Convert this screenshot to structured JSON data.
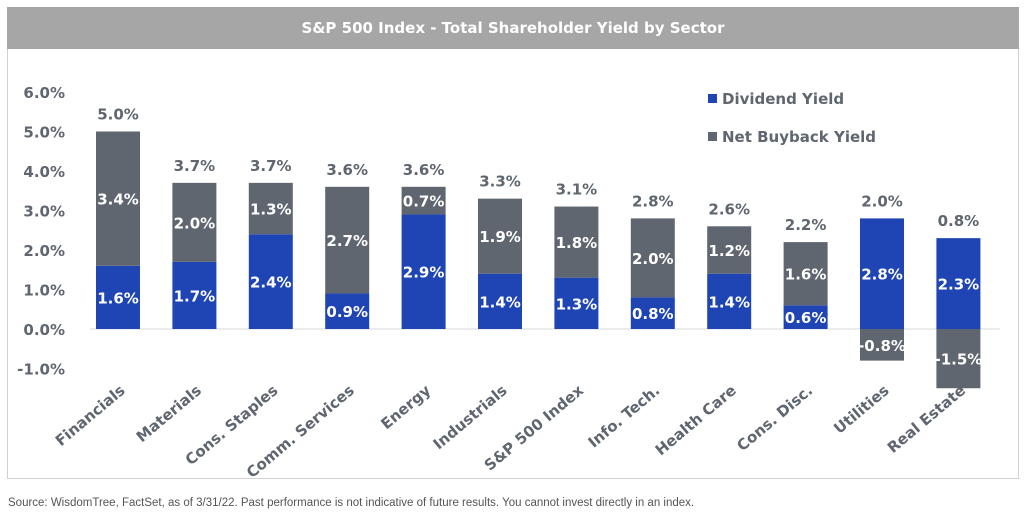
{
  "chart_data": {
    "type": "bar",
    "stacked": true,
    "title": "S&P 500 Index - Total Shareholder Yield by Sector",
    "categories": [
      "Financials",
      "Materials",
      "Cons. Staples",
      "Comm. Services",
      "Energy",
      "Industrials",
      "S&P 500 Index",
      "Info. Tech.",
      "Health Care",
      "Cons. Disc.",
      "Utilities",
      "Real Estate"
    ],
    "series": [
      {
        "name": "Dividend Yield",
        "color": "#1f45b5",
        "values": [
          1.6,
          1.7,
          2.4,
          0.9,
          2.9,
          1.4,
          1.3,
          0.8,
          1.4,
          0.6,
          2.8,
          2.3
        ],
        "labels": [
          "1.6%",
          "1.7%",
          "2.4%",
          "0.9%",
          "2.9%",
          "1.4%",
          "1.3%",
          "0.8%",
          "1.4%",
          "0.6%",
          "2.8%",
          "2.3%"
        ]
      },
      {
        "name": "Net Buyback Yield",
        "color": "#5f6670",
        "values": [
          3.4,
          2.0,
          1.3,
          2.7,
          0.7,
          1.9,
          1.8,
          2.0,
          1.2,
          1.6,
          -0.8,
          -1.5
        ],
        "labels": [
          "3.4%",
          "2.0%",
          "1.3%",
          "2.7%",
          "0.7%",
          "1.9%",
          "1.8%",
          "2.0%",
          "1.2%",
          "1.6%",
          "-0.8%",
          "-1.5%"
        ]
      }
    ],
    "totals": [
      5.0,
      3.7,
      3.7,
      3.6,
      3.6,
      3.3,
      3.1,
      2.8,
      2.6,
      2.2,
      2.0,
      0.8
    ],
    "total_labels": [
      "5.0%",
      "3.7%",
      "3.7%",
      "3.6%",
      "3.6%",
      "3.3%",
      "3.1%",
      "2.8%",
      "2.6%",
      "2.2%",
      "2.0%",
      "0.8%"
    ],
    "ylim": [
      -1.0,
      6.0
    ],
    "yticks": [
      "-1.0%",
      "0.0%",
      "1.0%",
      "2.0%",
      "3.0%",
      "4.0%",
      "5.0%",
      "6.0%"
    ],
    "ytick_values": [
      -1,
      0,
      1,
      2,
      3,
      4,
      5,
      6
    ],
    "grid": false,
    "legend": "top-right",
    "xlabel": "",
    "ylabel": ""
  },
  "footer": "Source: WisdomTree, FactSet, as of 3/31/22. Past performance is not indicative of future results. You cannot invest directly in an index."
}
